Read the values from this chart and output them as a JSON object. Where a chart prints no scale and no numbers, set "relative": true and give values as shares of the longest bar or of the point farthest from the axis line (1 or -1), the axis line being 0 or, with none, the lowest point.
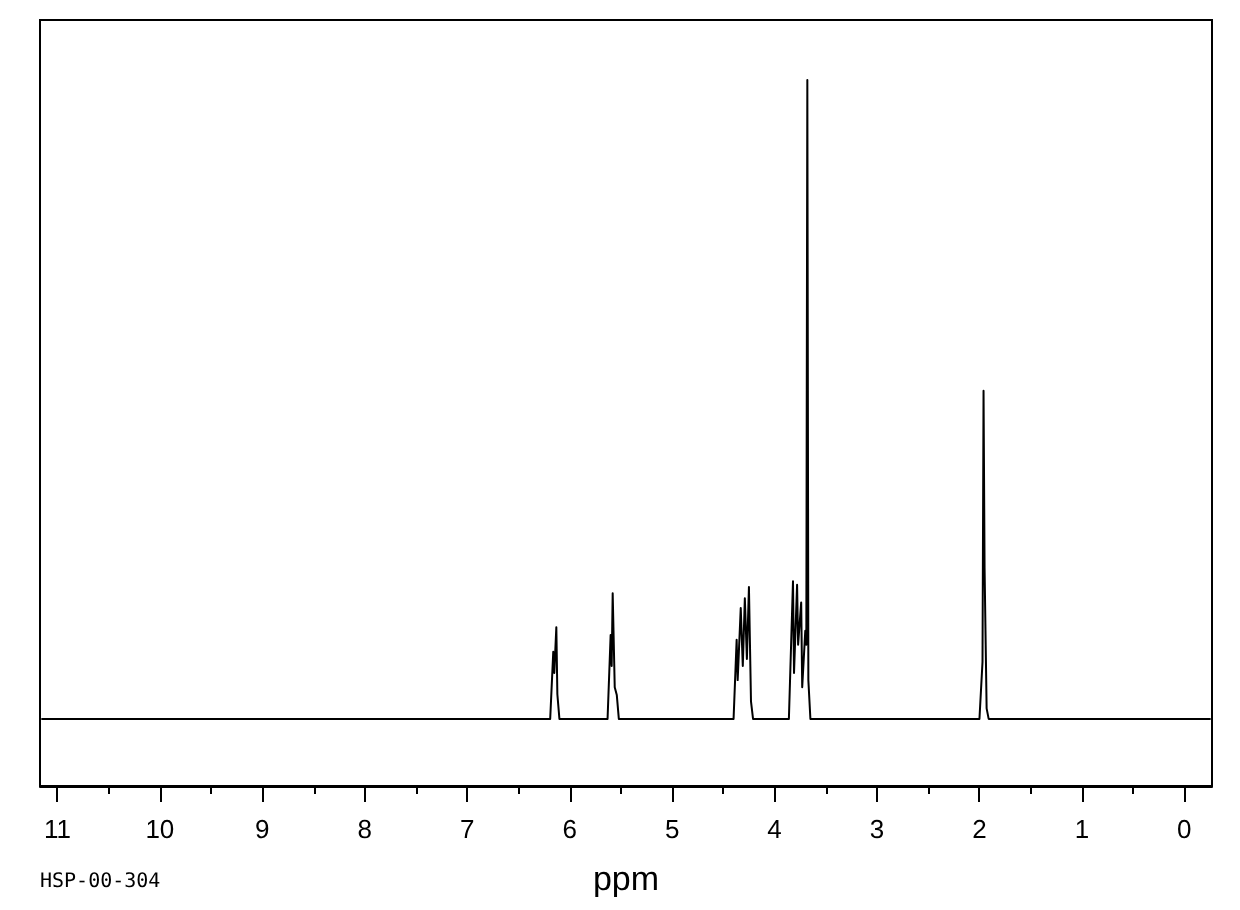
{
  "chart_data": {
    "type": "line",
    "xlabel": "ppm",
    "annotations": [
      "HSP-00-304"
    ],
    "relative": true,
    "color": "#000000",
    "marker": "none",
    "line_style": "solid",
    "tick_labels": "x",
    "xlim": [
      11.17,
      -0.27
    ],
    "xticks": [
      11,
      {
        "value": 10.5,
        "label": null
      },
      10,
      {
        "value": 9.5,
        "label": null
      },
      9,
      {
        "value": 8.5,
        "label": null
      },
      8,
      {
        "value": 7.5,
        "label": null
      },
      7,
      {
        "value": 6.5,
        "label": null
      },
      6,
      {
        "value": 5.5,
        "label": null
      },
      5,
      {
        "value": 4.5,
        "label": null
      },
      4,
      {
        "value": 3.5,
        "label": null
      },
      3,
      {
        "value": 2.5,
        "label": null
      },
      2,
      {
        "value": 1.5,
        "label": null
      },
      1,
      {
        "value": 0.5,
        "label": null
      },
      0
    ],
    "x": [
      11.15,
      6.19,
      6.16,
      6.15,
      6.13,
      6.12,
      6.1,
      5.63,
      5.6,
      5.59,
      5.58,
      5.56,
      5.54,
      5.52,
      4.4,
      4.37,
      4.36,
      4.33,
      4.31,
      4.29,
      4.27,
      4.25,
      4.23,
      4.21,
      3.86,
      3.82,
      3.81,
      3.78,
      3.77,
      3.74,
      3.73,
      3.7,
      3.69,
      3.68,
      3.67,
      3.65,
      2.0,
      1.97,
      1.96,
      1.95,
      1.93,
      1.91,
      -0.25
    ],
    "values": [
      0.095,
      0.095,
      0.19,
      0.16,
      0.225,
      0.13,
      0.095,
      0.095,
      0.214,
      0.17,
      0.273,
      0.14,
      0.129,
      0.095,
      0.095,
      0.207,
      0.15,
      0.252,
      0.17,
      0.266,
      0.18,
      0.282,
      0.12,
      0.095,
      0.095,
      0.29,
      0.16,
      0.285,
      0.2,
      0.26,
      0.14,
      0.22,
      0.2,
      1.0,
      0.15,
      0.095,
      0.095,
      0.176,
      0.56,
      0.309,
      0.11,
      0.095,
      0.095
    ]
  }
}
